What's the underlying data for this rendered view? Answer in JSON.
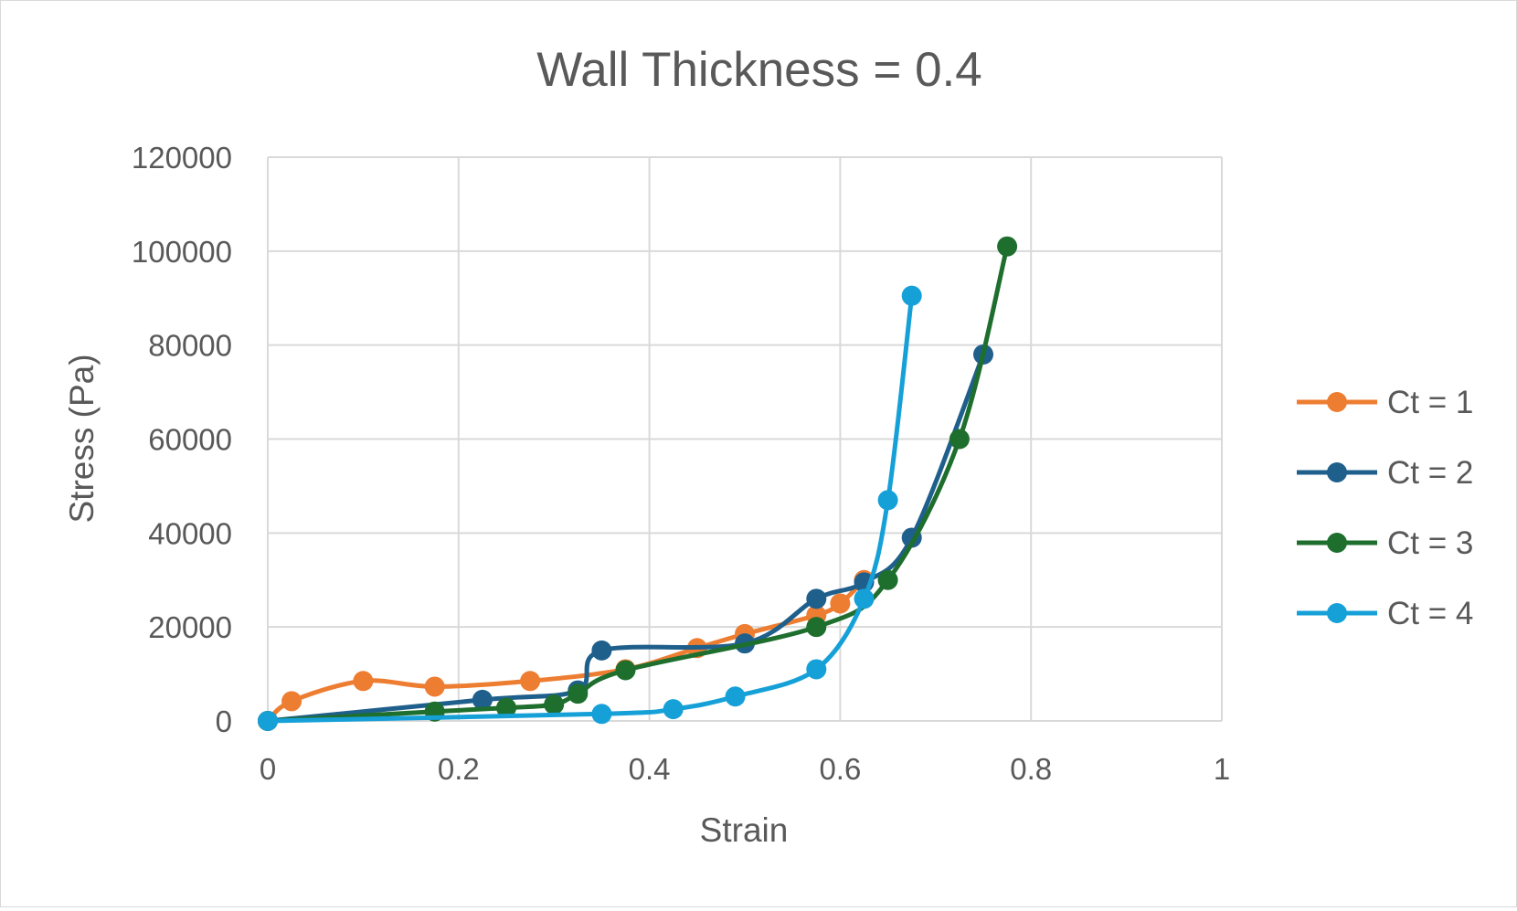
{
  "chart_data": {
    "type": "scatter",
    "title": "Wall Thickness = 0.4",
    "xlabel": "Strain",
    "ylabel": "Stress (Pa)",
    "xlim": [
      0,
      1
    ],
    "ylim": [
      0,
      120000
    ],
    "x_ticks": [
      0,
      0.2,
      0.4,
      0.6,
      0.8,
      1
    ],
    "x_tick_labels": [
      "0",
      "0.2",
      "0.4",
      "0.6",
      "0.8",
      "1"
    ],
    "y_ticks": [
      0,
      20000,
      40000,
      60000,
      80000,
      100000,
      120000
    ],
    "y_tick_labels": [
      "0",
      "20000",
      "40000",
      "60000",
      "80000",
      "100000",
      "120000"
    ],
    "grid": true,
    "smooth_lines": true,
    "markers": true,
    "legend_position": "right",
    "series": [
      {
        "name": "Ct = 1",
        "color": "#ED7D31",
        "points": [
          [
            0,
            0
          ],
          [
            0.025,
            4200
          ],
          [
            0.1,
            8500
          ],
          [
            0.175,
            7300
          ],
          [
            0.275,
            8500
          ],
          [
            0.375,
            11000
          ],
          [
            0.45,
            15500
          ],
          [
            0.5,
            18500
          ],
          [
            0.575,
            22500
          ],
          [
            0.6,
            25000
          ],
          [
            0.625,
            30000
          ]
        ]
      },
      {
        "name": "Ct = 2",
        "color": "#1F5F8B",
        "points": [
          [
            0,
            0
          ],
          [
            0.225,
            4500
          ],
          [
            0.325,
            6500
          ],
          [
            0.35,
            15000
          ],
          [
            0.5,
            16500
          ],
          [
            0.575,
            26000
          ],
          [
            0.625,
            29500
          ],
          [
            0.675,
            39000
          ],
          [
            0.75,
            78000
          ]
        ]
      },
      {
        "name": "Ct = 3",
        "color": "#1E6E2E",
        "points": [
          [
            0,
            0
          ],
          [
            0.175,
            2000
          ],
          [
            0.25,
            2800
          ],
          [
            0.3,
            3500
          ],
          [
            0.325,
            5800
          ],
          [
            0.375,
            10800
          ],
          [
            0.575,
            20000
          ],
          [
            0.65,
            30000
          ],
          [
            0.725,
            60000
          ],
          [
            0.775,
            101000
          ]
        ]
      },
      {
        "name": "Ct = 4",
        "color": "#16A0D8",
        "points": [
          [
            0,
            0
          ],
          [
            0.35,
            1500
          ],
          [
            0.425,
            2500
          ],
          [
            0.49,
            5200
          ],
          [
            0.575,
            11000
          ],
          [
            0.625,
            26000
          ],
          [
            0.65,
            47000
          ],
          [
            0.675,
            90500
          ]
        ]
      }
    ]
  }
}
